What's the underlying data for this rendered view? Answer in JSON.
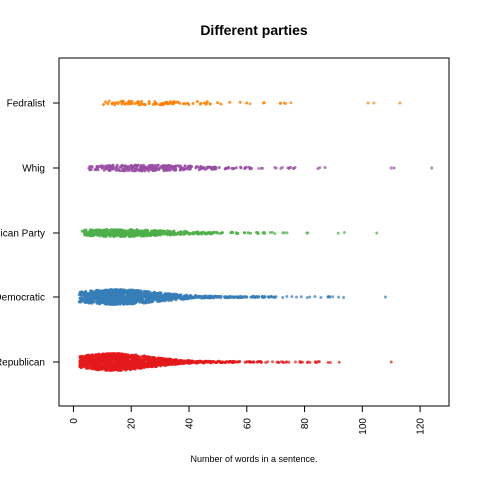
{
  "chart_data": {
    "type": "scatter",
    "title": "Different parties",
    "xlabel": "Number of words in a sentence.",
    "ylabel": "",
    "xlim": [
      -5,
      130
    ],
    "xticks": [
      "0",
      "20",
      "40",
      "60",
      "80",
      "100",
      "120"
    ],
    "categories": [
      "Republican",
      "Democratic",
      "Republican Party",
      "Whig",
      "Fedralist"
    ],
    "grid": false,
    "legend": "none",
    "series": [
      {
        "category": "Republican",
        "color": "#e41a1c",
        "mode": 14,
        "spread": 11,
        "count": 1400,
        "amp": 8,
        "min": 2,
        "max": 93,
        "outliers": [
          110
        ]
      },
      {
        "category": "Democratic",
        "color": "#377eb8",
        "mode": 15,
        "spread": 12,
        "count": 1200,
        "amp": 7,
        "min": 2,
        "max": 95,
        "outliers": [
          108
        ]
      },
      {
        "category": "Republican Party",
        "color": "#4daf4a",
        "mode": 15,
        "spread": 14,
        "count": 500,
        "amp": 3,
        "min": 3,
        "max": 97,
        "outliers": [
          105
        ]
      },
      {
        "category": "Whig",
        "color": "#984ea3",
        "mode": 22,
        "spread": 15,
        "count": 320,
        "amp": 2.5,
        "min": 5,
        "max": 90,
        "outliers": [
          110,
          111,
          124
        ]
      },
      {
        "category": "Fedralist",
        "color": "#ff7f00",
        "mode": 24,
        "spread": 16,
        "count": 90,
        "amp": 1.5,
        "min": 9,
        "max": 86,
        "outliers": [
          102,
          104,
          113
        ]
      }
    ]
  }
}
